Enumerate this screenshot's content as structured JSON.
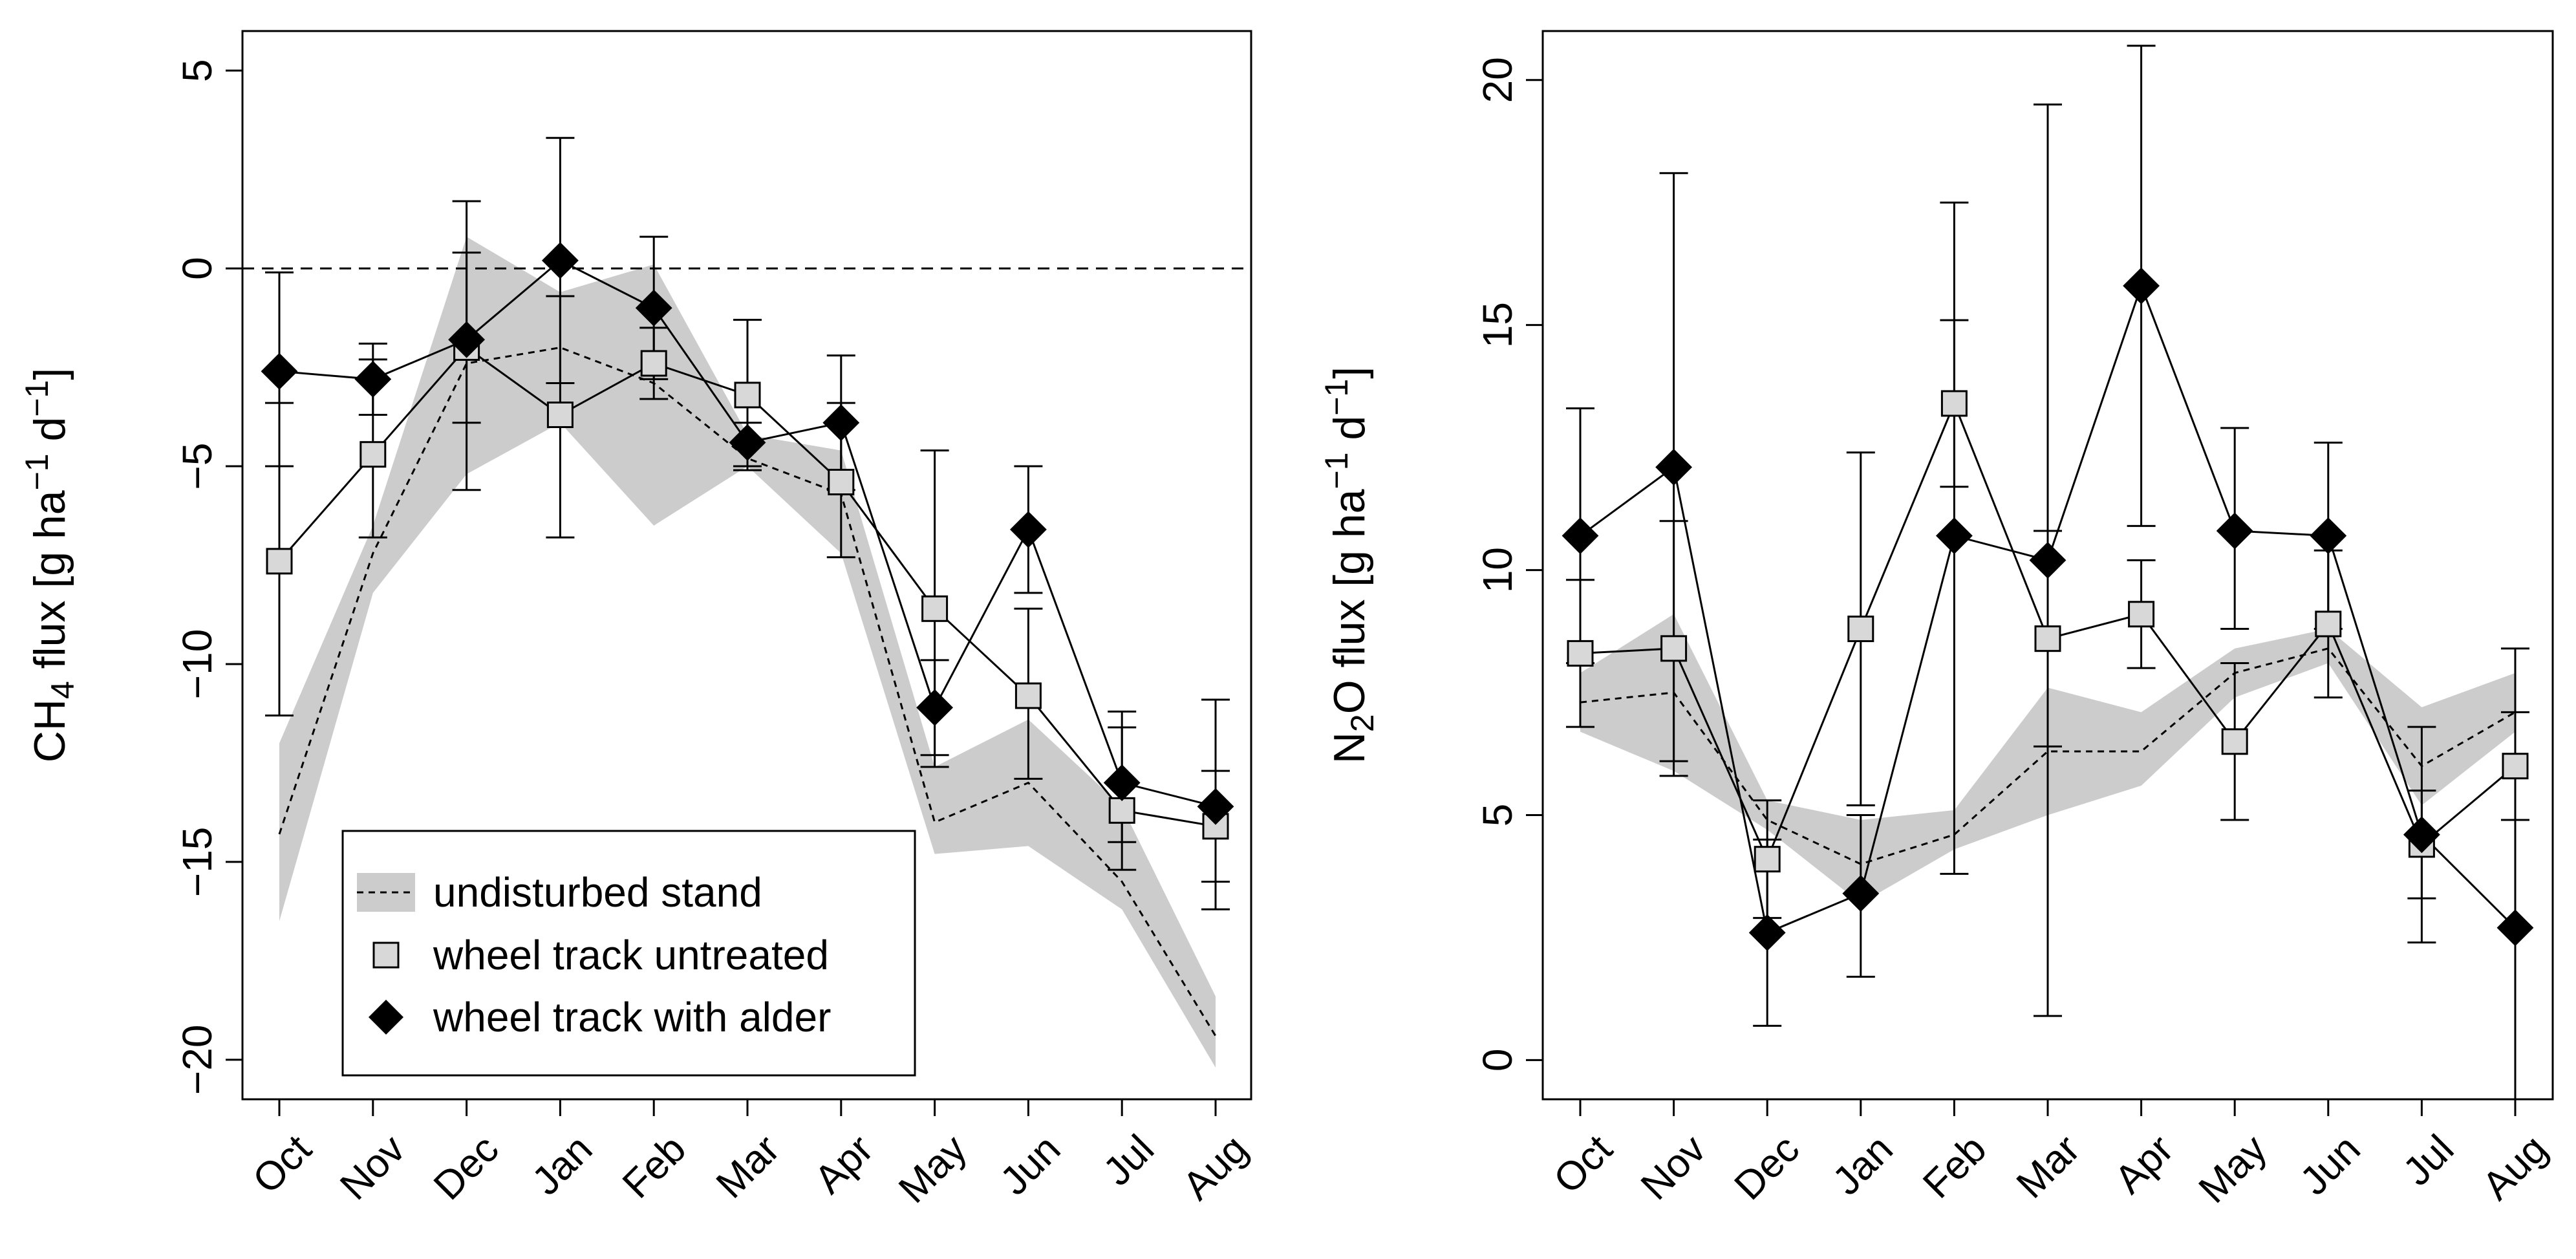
{
  "chart_data": [
    {
      "type": "line",
      "months": [
        "Oct",
        "Nov",
        "Dec",
        "Jan",
        "Feb",
        "Mar",
        "Apr",
        "May",
        "Jun",
        "Jul",
        "Aug"
      ],
      "ylim": [
        -21,
        6
      ],
      "yticks": [
        5,
        0,
        -5,
        -10,
        -15,
        -20
      ],
      "ytick_labels": [
        "5",
        "0",
        "−5",
        "−10",
        "−15",
        "−20"
      ],
      "ylabel": {
        "pre": "CH",
        "sub": "4",
        "mid": " flux [g ha",
        "sup1": "−1",
        "post": " d",
        "sup2": "−1",
        "end": "]"
      },
      "hline": 0,
      "band": {
        "upper": [
          -12,
          -6.5,
          0.8,
          -0.6,
          0.1,
          -4.2,
          -4.6,
          -12.6,
          -11.4,
          -13.6,
          -18.4
        ],
        "lower": [
          -16.5,
          -8.2,
          -5.2,
          -3.9,
          -6.5,
          -5.0,
          -7.2,
          -14.8,
          -14.6,
          -16.2,
          -20.2
        ],
        "mean": [
          -14.3,
          -7.2,
          -2.4,
          -2.0,
          -2.9,
          -4.8,
          -5.7,
          -14.0,
          -13.0,
          -15.5,
          -19.4
        ]
      },
      "untreated": {
        "values": [
          -7.4,
          -4.7,
          -2.0,
          -3.7,
          -2.4,
          -3.2,
          -5.4,
          -8.6,
          -10.8,
          -13.7,
          -14.1
        ],
        "err_hi": [
          -3.4,
          -2.3,
          1.7,
          -0.7,
          -1.5,
          -1.3,
          -3.4,
          -4.6,
          -8.6,
          -11.2,
          -12.7
        ],
        "err_lo": [
          -11.3,
          -6.8,
          -5.6,
          -6.8,
          -3.3,
          -5.1,
          -7.3,
          -12.6,
          -12.9,
          -15.2,
          -15.5
        ]
      },
      "alder": {
        "values": [
          -2.6,
          -2.8,
          -1.8,
          0.2,
          -1.0,
          -4.4,
          -3.9,
          -11.1,
          -6.6,
          -13.0,
          -13.6
        ],
        "err_hi": [
          -0.1,
          -1.9,
          0.4,
          3.3,
          0.8,
          -3.9,
          -2.2,
          -9.9,
          -5.0,
          -11.6,
          -10.9
        ],
        "err_lo": [
          -5.0,
          -3.7,
          -3.9,
          -2.9,
          -2.8,
          -5.0,
          -5.6,
          -12.3,
          -8.2,
          -14.5,
          -16.2
        ]
      },
      "legend": {
        "items": [
          "undisturbed stand",
          "wheel track untreated",
          "wheel track with alder"
        ],
        "position": "bottom-left"
      }
    },
    {
      "type": "line",
      "months": [
        "Oct",
        "Nov",
        "Dec",
        "Jan",
        "Feb",
        "Mar",
        "Apr",
        "May",
        "Jun",
        "Jul",
        "Aug"
      ],
      "ylim": [
        -0.8,
        21
      ],
      "yticks": [
        0,
        5,
        10,
        15,
        20
      ],
      "ytick_labels": [
        "0",
        "5",
        "10",
        "15",
        "20"
      ],
      "ylabel": {
        "pre": "N",
        "sub": "2",
        "mid": "O flux [g ha",
        "sup1": "−1",
        "post": " d",
        "sup2": "−1",
        "end": "]"
      },
      "band": {
        "upper": [
          7.9,
          9.1,
          5.3,
          4.9,
          5.1,
          7.6,
          7.1,
          8.4,
          8.8,
          7.2,
          7.9
        ],
        "lower": [
          6.7,
          5.9,
          4.7,
          3.2,
          4.3,
          5.0,
          5.6,
          7.4,
          8.1,
          5.2,
          6.7
        ],
        "mean": [
          7.3,
          7.5,
          4.9,
          4.0,
          4.6,
          6.3,
          6.3,
          7.9,
          8.4,
          6.0,
          7.1
        ]
      },
      "untreated": {
        "values": [
          8.3,
          8.4,
          4.1,
          8.8,
          13.4,
          8.6,
          9.1,
          6.5,
          8.9,
          4.4,
          6.0
        ],
        "err_hi": [
          9.8,
          11.0,
          5.3,
          12.4,
          15.1,
          10.8,
          10.2,
          8.1,
          10.4,
          5.5,
          7.1
        ],
        "err_lo": [
          6.8,
          5.8,
          2.9,
          5.2,
          11.7,
          6.4,
          8.0,
          4.9,
          7.4,
          3.3,
          4.9
        ]
      },
      "alder": {
        "values": [
          10.7,
          12.1,
          2.6,
          3.4,
          10.7,
          10.2,
          15.8,
          10.8,
          10.7,
          4.6,
          2.7
        ],
        "err_hi": [
          13.3,
          18.1,
          4.5,
          5.0,
          17.5,
          19.5,
          20.7,
          12.9,
          12.6,
          6.8,
          8.4
        ],
        "err_lo": [
          8.1,
          6.1,
          0.7,
          1.7,
          3.8,
          0.9,
          10.9,
          8.8,
          8.8,
          2.4,
          -0.8
        ]
      }
    }
  ]
}
